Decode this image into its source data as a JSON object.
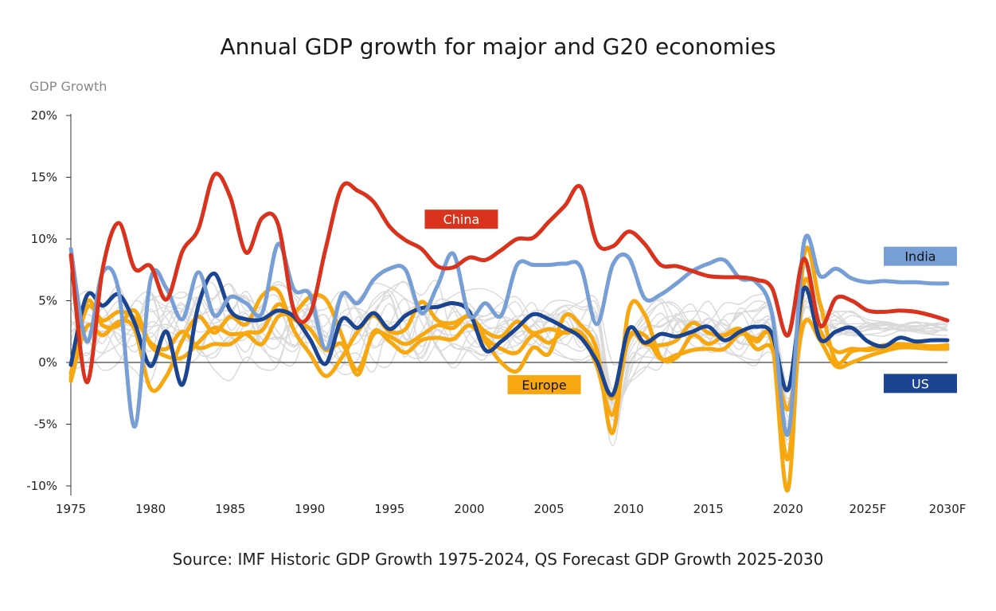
{
  "title": "Annual GDP growth for major and G20 economies",
  "ylabel": "GDP Growth",
  "source": "Source: IMF Historic GDP Growth 1975-2024, QS Forecast GDP Growth 2025-2030",
  "colors": {
    "China": "#d9321d",
    "India": "#779fd6",
    "US": "#1b4491",
    "Europe": "#f7a70f",
    "background": "#d9d9d9",
    "zero": "#444444"
  },
  "chart_data": {
    "type": "line",
    "title": "Annual GDP growth for major and G20 economies",
    "ylabel": "GDP Growth",
    "xlabel": "",
    "xlim": [
      1975,
      2030
    ],
    "ylim": [
      -10,
      20
    ],
    "y_ticks": [
      20,
      15,
      10,
      5,
      0,
      -5,
      -10
    ],
    "y_tick_labels": [
      "20%",
      "15%",
      "10%",
      "5%",
      "0%",
      "-5%",
      "-10%"
    ],
    "x_ticks": [
      1975,
      1980,
      1985,
      1990,
      1995,
      2000,
      2005,
      2010,
      2015,
      2020,
      2025,
      2030
    ],
    "x_tick_labels": [
      "1975",
      "1980",
      "1985",
      "1990",
      "1995",
      "2000",
      "2005",
      "2010",
      "2015",
      "2020",
      "2025F",
      "2030F"
    ],
    "highlight_series": [
      {
        "name": "China",
        "label": "China",
        "x": [
          1975,
          1976,
          1977,
          1978,
          1979,
          1980,
          1981,
          1982,
          1983,
          1984,
          1985,
          1986,
          1987,
          1988,
          1989,
          1990,
          1991,
          1992,
          1993,
          1994,
          1995,
          1996,
          1997,
          1998,
          1999,
          2000,
          2001,
          2002,
          2003,
          2004,
          2005,
          2006,
          2007,
          2008,
          2009,
          2010,
          2011,
          2012,
          2013,
          2014,
          2015,
          2016,
          2017,
          2018,
          2019,
          2020,
          2021,
          2022,
          2023,
          2024,
          2025,
          2026,
          2027,
          2028,
          2029,
          2030
        ],
        "y": [
          8.7,
          -1.6,
          7.6,
          11.3,
          7.6,
          7.8,
          5.1,
          9.0,
          10.8,
          15.2,
          13.4,
          8.9,
          11.7,
          11.2,
          4.2,
          3.9,
          9.3,
          14.2,
          13.9,
          13.0,
          11.0,
          9.9,
          9.2,
          7.8,
          7.7,
          8.5,
          8.3,
          9.1,
          10.0,
          10.1,
          11.4,
          12.7,
          14.2,
          9.7,
          9.4,
          10.6,
          9.6,
          7.9,
          7.8,
          7.4,
          7.0,
          6.9,
          6.9,
          6.7,
          6.0,
          2.2,
          8.4,
          3.0,
          5.2,
          5.0,
          4.2,
          4.1,
          4.2,
          4.1,
          3.8,
          3.4
        ]
      },
      {
        "name": "India",
        "label": "India",
        "x": [
          1975,
          1976,
          1977,
          1978,
          1979,
          1980,
          1981,
          1982,
          1983,
          1984,
          1985,
          1986,
          1987,
          1988,
          1989,
          1990,
          1991,
          1992,
          1993,
          1994,
          1995,
          1996,
          1997,
          1998,
          1999,
          2000,
          2001,
          2002,
          2003,
          2004,
          2005,
          2006,
          2007,
          2008,
          2009,
          2010,
          2011,
          2012,
          2013,
          2014,
          2015,
          2016,
          2017,
          2018,
          2019,
          2020,
          2021,
          2022,
          2023,
          2024,
          2025,
          2026,
          2027,
          2028,
          2029,
          2030
        ],
        "y": [
          9.2,
          1.7,
          7.3,
          5.8,
          -5.2,
          6.7,
          6.0,
          3.5,
          7.3,
          3.8,
          5.3,
          4.8,
          4.0,
          9.6,
          5.9,
          5.5,
          1.1,
          5.5,
          4.8,
          6.7,
          7.6,
          7.5,
          4.0,
          6.2,
          8.8,
          3.8,
          4.8,
          3.8,
          7.9,
          7.9,
          7.9,
          8.0,
          7.7,
          3.1,
          7.9,
          8.5,
          5.2,
          5.5,
          6.4,
          7.4,
          8.0,
          8.3,
          6.8,
          6.5,
          3.9,
          -5.8,
          9.7,
          7.0,
          7.6,
          6.8,
          6.5,
          6.6,
          6.5,
          6.5,
          6.4,
          6.4
        ]
      },
      {
        "name": "US",
        "label": "US",
        "x": [
          1975,
          1976,
          1977,
          1978,
          1979,
          1980,
          1981,
          1982,
          1983,
          1984,
          1985,
          1986,
          1987,
          1988,
          1989,
          1990,
          1991,
          1992,
          1993,
          1994,
          1995,
          1996,
          1997,
          1998,
          1999,
          2000,
          2001,
          2002,
          2003,
          2004,
          2005,
          2006,
          2007,
          2008,
          2009,
          2010,
          2011,
          2012,
          2013,
          2014,
          2015,
          2016,
          2017,
          2018,
          2019,
          2020,
          2021,
          2022,
          2023,
          2024,
          2025,
          2026,
          2027,
          2028,
          2029,
          2030
        ],
        "y": [
          -0.2,
          5.4,
          4.6,
          5.5,
          3.2,
          -0.3,
          2.5,
          -1.8,
          4.6,
          7.2,
          4.2,
          3.5,
          3.5,
          4.2,
          3.7,
          1.9,
          -0.1,
          3.5,
          2.8,
          4.0,
          2.7,
          3.8,
          4.4,
          4.5,
          4.8,
          4.1,
          1.0,
          1.7,
          2.8,
          3.9,
          3.5,
          2.8,
          2.0,
          0.1,
          -2.6,
          2.7,
          1.6,
          2.3,
          2.1,
          2.5,
          2.9,
          1.8,
          2.5,
          2.9,
          2.3,
          -2.2,
          6.0,
          1.9,
          2.5,
          2.8,
          1.7,
          1.3,
          2.0,
          1.7,
          1.8,
          1.8
        ]
      },
      {
        "name": "Europe 1",
        "x": [
          1975,
          1976,
          1977,
          1978,
          1979,
          1980,
          1981,
          1982,
          1983,
          1984,
          1985,
          1986,
          1987,
          1988,
          1989,
          1990,
          1991,
          1992,
          1993,
          1994,
          1995,
          1996,
          1997,
          1998,
          1999,
          2000,
          2001,
          2002,
          2003,
          2004,
          2005,
          2006,
          2007,
          2008,
          2009,
          2010,
          2011,
          2012,
          2013,
          2014,
          2015,
          2016,
          2017,
          2018,
          2019,
          2020,
          2021,
          2022,
          2023,
          2024,
          2025,
          2026,
          2027,
          2028,
          2029,
          2030
        ],
        "y": [
          -1.3,
          4.9,
          3.0,
          3.0,
          4.2,
          1.4,
          0.5,
          0.4,
          1.6,
          2.8,
          2.3,
          2.3,
          1.5,
          3.7,
          4.0,
          5.3,
          5.1,
          2.2,
          -1.0,
          2.5,
          1.7,
          0.8,
          1.8,
          2.0,
          1.9,
          3.0,
          1.7,
          0.0,
          -0.7,
          1.2,
          0.7,
          3.8,
          3.0,
          1.0,
          -5.7,
          4.2,
          3.9,
          0.4,
          0.4,
          2.2,
          1.5,
          2.2,
          2.7,
          1.1,
          1.1,
          -3.8,
          3.2,
          1.8,
          -0.3,
          0.0,
          0.5,
          0.9,
          1.2,
          1.2,
          1.1,
          1.1
        ]
      },
      {
        "name": "Europe 2",
        "x": [
          1975,
          1976,
          1977,
          1978,
          1979,
          1980,
          1981,
          1982,
          1983,
          1984,
          1985,
          1986,
          1987,
          1988,
          1989,
          1990,
          1991,
          1992,
          1993,
          1994,
          1995,
          1996,
          1997,
          1998,
          1999,
          2000,
          2001,
          2002,
          2003,
          2004,
          2005,
          2006,
          2007,
          2008,
          2009,
          2010,
          2011,
          2012,
          2013,
          2014,
          2015,
          2016,
          2017,
          2018,
          2019,
          2020,
          2021,
          2022,
          2023,
          2024,
          2025,
          2026,
          2027,
          2028,
          2029,
          2030
        ],
        "y": [
          -0.9,
          4.4,
          3.4,
          4.1,
          3.6,
          1.6,
          1.1,
          2.5,
          1.2,
          1.5,
          1.5,
          2.4,
          2.6,
          4.7,
          3.5,
          2.7,
          1.0,
          1.5,
          -0.6,
          2.3,
          2.1,
          1.5,
          2.2,
          3.0,
          2.8,
          3.8,
          2.0,
          1.1,
          0.8,
          2.2,
          1.6,
          2.5,
          2.4,
          0.3,
          -2.9,
          1.9,
          2.2,
          0.3,
          0.6,
          1.0,
          1.1,
          1.1,
          2.3,
          1.9,
          1.8,
          -7.8,
          6.4,
          2.6,
          0.9,
          1.1,
          1.0,
          1.2,
          1.4,
          1.4,
          1.3,
          1.2
        ]
      },
      {
        "name": "Europe 3",
        "x": [
          1975,
          1976,
          1977,
          1978,
          1979,
          1980,
          1981,
          1982,
          1983,
          1984,
          1985,
          1986,
          1987,
          1988,
          1989,
          1990,
          1991,
          1992,
          1993,
          1994,
          1995,
          1996,
          1997,
          1998,
          1999,
          2000,
          2001,
          2002,
          2003,
          2004,
          2005,
          2006,
          2007,
          2008,
          2009,
          2010,
          2011,
          2012,
          2013,
          2014,
          2015,
          2016,
          2017,
          2018,
          2019,
          2020,
          2021,
          2022,
          2023,
          2024,
          2025,
          2026,
          2027,
          2028,
          2029,
          2030
        ],
        "y": [
          -1.5,
          2.9,
          2.2,
          3.3,
          2.7,
          -2.1,
          -1.1,
          1.8,
          3.7,
          2.4,
          3.7,
          3.1,
          5.4,
          5.8,
          2.6,
          0.7,
          -1.1,
          0.4,
          2.5,
          3.8,
          2.5,
          2.7,
          4.9,
          3.4,
          3.2,
          3.7,
          2.5,
          2.1,
          3.3,
          2.4,
          2.7,
          2.4,
          2.3,
          -0.3,
          -4.2,
          2.1,
          1.5,
          1.4,
          1.8,
          3.2,
          2.4,
          2.2,
          2.6,
          1.7,
          1.6,
          -10.3,
          8.6,
          4.8,
          0.1,
          0.9,
          1.1,
          1.4,
          1.5,
          1.4,
          1.3,
          1.4
        ]
      }
    ],
    "background_series_count": 14,
    "annotations": [
      {
        "text": "China",
        "x": 1999.5,
        "y": 11.6,
        "series": "China"
      },
      {
        "text": "India",
        "x": 2028.3,
        "y": 8.6,
        "series": "India"
      },
      {
        "text": "Europe",
        "x": 2004.7,
        "y": -1.8,
        "series": "Europe"
      },
      {
        "text": "US",
        "x": 2028.3,
        "y": -1.7,
        "series": "US"
      }
    ],
    "zero_line": true,
    "grid": false
  }
}
